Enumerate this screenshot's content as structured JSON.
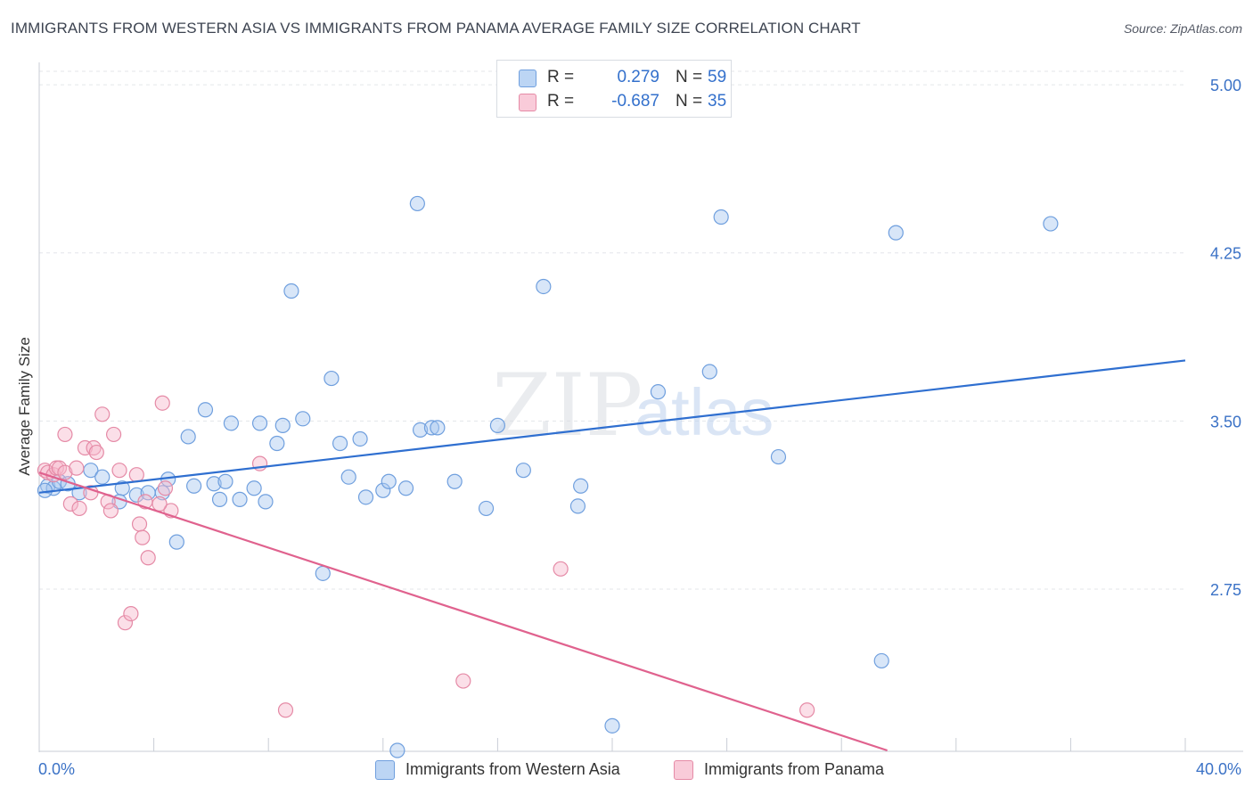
{
  "title": "IMMIGRANTS FROM WESTERN ASIA VS IMMIGRANTS FROM PANAMA AVERAGE FAMILY SIZE CORRELATION CHART",
  "source": "Source: ZipAtlas.com",
  "watermark": {
    "zip": "ZIP",
    "atlas": "atlas"
  },
  "colors": {
    "blue_fill": "#a9c8f0",
    "blue_stroke": "#6f9fde",
    "blue_line": "#2f6fd0",
    "pink_fill": "#f7b8cb",
    "pink_stroke": "#e58aa6",
    "pink_line": "#e0628e",
    "tick_text": "#3b72c6",
    "grid": "#e3e6ea"
  },
  "legend": {
    "rows": [
      {
        "r_label": "R =",
        "r_value": "0.279",
        "n_label": "N =",
        "n_value": "59"
      },
      {
        "r_label": "R =",
        "r_value": "-0.687",
        "n_label": "N =",
        "n_value": "35"
      }
    ]
  },
  "bottom_legend": {
    "western_asia": "Immigrants from Western Asia",
    "panama": "Immigrants from Panama"
  },
  "chart_data": {
    "type": "scatter",
    "title": "IMMIGRANTS FROM WESTERN ASIA VS IMMIGRANTS FROM PANAMA AVERAGE FAMILY SIZE CORRELATION CHART",
    "xlabel": "",
    "ylabel": "Average Family Size",
    "xlim": [
      0,
      40
    ],
    "ylim": [
      2.03,
      5.1
    ],
    "x_tick_labels": [
      "0.0%",
      "40.0%"
    ],
    "y_ticks": [
      5.0,
      4.25,
      3.5,
      2.75
    ],
    "y_tick_labels": [
      "5.00",
      "4.25",
      "3.50",
      "2.75"
    ],
    "grid": true,
    "series": [
      {
        "name": "Immigrants from Western Asia",
        "color": "blue",
        "r": 0.279,
        "n": 59,
        "trend": {
          "x": [
            0,
            40
          ],
          "y": [
            3.18,
            3.77
          ]
        },
        "points": [
          [
            0.3,
            3.21
          ],
          [
            0.5,
            3.2
          ],
          [
            0.7,
            3.23
          ],
          [
            1.0,
            3.22
          ],
          [
            1.4,
            3.18
          ],
          [
            1.8,
            3.28
          ],
          [
            2.2,
            3.25
          ],
          [
            2.9,
            3.2
          ],
          [
            3.4,
            3.17
          ],
          [
            3.8,
            3.18
          ],
          [
            4.3,
            3.18
          ],
          [
            4.5,
            3.24
          ],
          [
            4.8,
            2.96
          ],
          [
            5.2,
            3.43
          ],
          [
            5.4,
            3.21
          ],
          [
            5.8,
            3.55
          ],
          [
            6.1,
            3.22
          ],
          [
            6.5,
            3.23
          ],
          [
            6.7,
            3.49
          ],
          [
            7.0,
            3.15
          ],
          [
            7.5,
            3.2
          ],
          [
            7.7,
            3.49
          ],
          [
            7.9,
            3.14
          ],
          [
            8.3,
            3.4
          ],
          [
            8.5,
            3.48
          ],
          [
            8.8,
            4.08
          ],
          [
            9.2,
            3.51
          ],
          [
            9.9,
            2.82
          ],
          [
            10.2,
            3.69
          ],
          [
            10.5,
            3.4
          ],
          [
            10.8,
            3.25
          ],
          [
            11.2,
            3.42
          ],
          [
            11.4,
            3.16
          ],
          [
            12.0,
            3.19
          ],
          [
            12.2,
            3.23
          ],
          [
            12.5,
            2.03
          ],
          [
            12.8,
            3.2
          ],
          [
            13.2,
            4.47
          ],
          [
            13.3,
            3.46
          ],
          [
            13.7,
            3.47
          ],
          [
            13.9,
            3.47
          ],
          [
            14.5,
            3.23
          ],
          [
            15.6,
            3.11
          ],
          [
            16.0,
            3.48
          ],
          [
            16.9,
            3.28
          ],
          [
            17.6,
            4.1
          ],
          [
            18.8,
            3.12
          ],
          [
            18.9,
            3.21
          ],
          [
            20.0,
            2.14
          ],
          [
            21.6,
            3.63
          ],
          [
            23.4,
            3.72
          ],
          [
            23.8,
            4.41
          ],
          [
            25.8,
            3.34
          ],
          [
            29.4,
            2.43
          ],
          [
            29.9,
            4.34
          ],
          [
            35.3,
            4.38
          ],
          [
            0.2,
            3.19
          ],
          [
            2.8,
            3.14
          ],
          [
            6.3,
            3.15
          ]
        ]
      },
      {
        "name": "Immigrants from Panama",
        "color": "pink",
        "r": -0.687,
        "n": 35,
        "trend": {
          "x": [
            0,
            29.6
          ],
          "y": [
            3.27,
            2.03
          ]
        },
        "points": [
          [
            0.2,
            3.28
          ],
          [
            0.3,
            3.27
          ],
          [
            0.5,
            3.26
          ],
          [
            0.6,
            3.29
          ],
          [
            0.7,
            3.29
          ],
          [
            0.9,
            3.27
          ],
          [
            0.9,
            3.44
          ],
          [
            1.1,
            3.13
          ],
          [
            1.3,
            3.29
          ],
          [
            1.4,
            3.11
          ],
          [
            1.6,
            3.38
          ],
          [
            1.8,
            3.18
          ],
          [
            1.9,
            3.38
          ],
          [
            2.0,
            3.36
          ],
          [
            2.2,
            3.53
          ],
          [
            2.4,
            3.14
          ],
          [
            2.5,
            3.1
          ],
          [
            2.6,
            3.44
          ],
          [
            2.8,
            3.28
          ],
          [
            3.0,
            2.6
          ],
          [
            3.2,
            2.64
          ],
          [
            3.4,
            3.26
          ],
          [
            3.5,
            3.04
          ],
          [
            3.6,
            2.98
          ],
          [
            3.7,
            3.14
          ],
          [
            3.8,
            2.89
          ],
          [
            4.3,
            3.58
          ],
          [
            4.4,
            3.2
          ],
          [
            4.6,
            3.1
          ],
          [
            7.7,
            3.31
          ],
          [
            8.6,
            2.21
          ],
          [
            14.8,
            2.34
          ],
          [
            18.2,
            2.84
          ],
          [
            26.8,
            2.21
          ],
          [
            4.2,
            3.13
          ]
        ]
      }
    ]
  }
}
